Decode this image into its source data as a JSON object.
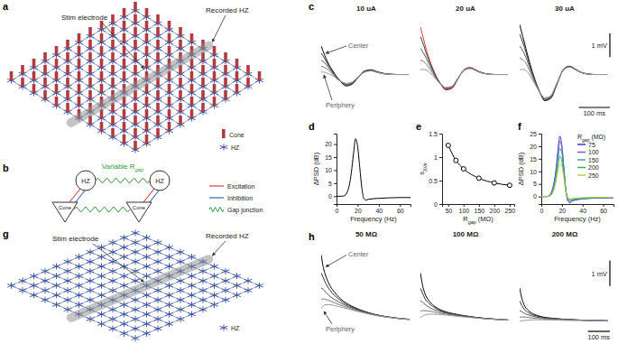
{
  "chart_data": [
    {
      "type": "line",
      "label": "c",
      "title": "10 uA",
      "tick_labels": false,
      "annotations": [
        "Center",
        "Periphery"
      ],
      "x": [
        0,
        10,
        20,
        30,
        40,
        50,
        60,
        70,
        80,
        100,
        120,
        140,
        160,
        180,
        200,
        240,
        280
      ],
      "xlim": [
        0,
        290
      ],
      "ylim": [
        -1.5,
        2.3
      ],
      "series": [
        {
          "color": "#000000",
          "values": [
            1.2,
            0.85,
            0.55,
            0.3,
            0.1,
            -0.1,
            -0.25,
            -0.4,
            -0.48,
            -0.4,
            -0.1,
            0.15,
            0.2,
            0.12,
            0.05,
            0,
            0
          ]
        },
        {
          "color": "#333333",
          "values": [
            0.9,
            0.7,
            0.45,
            0.25,
            0.05,
            -0.12,
            -0.27,
            -0.38,
            -0.45,
            -0.38,
            -0.1,
            0.13,
            0.18,
            0.1,
            0.04,
            0,
            0
          ]
        },
        {
          "color": "#555555",
          "values": [
            0.6,
            0.5,
            0.35,
            0.18,
            0.02,
            -0.14,
            -0.27,
            -0.36,
            -0.42,
            -0.35,
            -0.09,
            0.12,
            0.17,
            0.1,
            0.04,
            0,
            0
          ]
        },
        {
          "color": "#777777",
          "values": [
            0.35,
            0.3,
            0.22,
            0.1,
            -0.03,
            -0.16,
            -0.27,
            -0.34,
            -0.39,
            -0.33,
            -0.08,
            0.11,
            0.16,
            0.09,
            0.03,
            0,
            0
          ]
        },
        {
          "color": "#999999",
          "values": [
            0.1,
            0.1,
            0.05,
            0,
            -0.08,
            -0.18,
            -0.27,
            -0.33,
            -0.37,
            -0.31,
            -0.08,
            0.1,
            0.15,
            0.09,
            0.03,
            0,
            0
          ]
        }
      ]
    },
    {
      "type": "line",
      "title": "20 uA",
      "tick_labels": false,
      "x": [
        0,
        10,
        20,
        30,
        40,
        50,
        60,
        70,
        80,
        100,
        120,
        140,
        160,
        180,
        200,
        240,
        280
      ],
      "xlim": [
        0,
        290
      ],
      "ylim": [
        -1.5,
        2.3
      ],
      "series": [
        {
          "color": "#d9412f",
          "values": [
            2.0,
            1.5,
            1.0,
            0.6,
            0.25,
            -0.05,
            -0.3,
            -0.5,
            -0.65,
            -0.6,
            -0.2,
            0.2,
            0.3,
            0.18,
            0.07,
            0,
            0
          ]
        },
        {
          "color": "#333333",
          "values": [
            1.6,
            1.25,
            0.85,
            0.5,
            0.2,
            -0.08,
            -0.3,
            -0.48,
            -0.62,
            -0.57,
            -0.19,
            0.19,
            0.28,
            0.17,
            0.06,
            0,
            0
          ]
        },
        {
          "color": "#555555",
          "values": [
            1.1,
            0.9,
            0.65,
            0.38,
            0.12,
            -0.12,
            -0.32,
            -0.47,
            -0.6,
            -0.55,
            -0.18,
            0.18,
            0.27,
            0.16,
            0.06,
            0,
            0
          ]
        },
        {
          "color": "#777777",
          "values": [
            0.6,
            0.55,
            0.42,
            0.24,
            0.04,
            -0.15,
            -0.33,
            -0.46,
            -0.57,
            -0.52,
            -0.17,
            0.17,
            0.26,
            0.15,
            0.05,
            0,
            0
          ]
        },
        {
          "color": "#999999",
          "values": [
            0.2,
            0.22,
            0.18,
            0.08,
            -0.05,
            -0.2,
            -0.34,
            -0.45,
            -0.54,
            -0.5,
            -0.16,
            0.16,
            0.25,
            0.15,
            0.05,
            0,
            0
          ]
        }
      ]
    },
    {
      "type": "line",
      "title": "30 uA",
      "tick_labels": false,
      "scale_bar": {
        "x": 100,
        "x_label": "100 ms",
        "y": 1,
        "y_label": "1 mV"
      },
      "x": [
        0,
        10,
        20,
        30,
        40,
        50,
        60,
        70,
        80,
        100,
        120,
        140,
        160,
        180,
        200,
        240,
        280
      ],
      "xlim": [
        0,
        290
      ],
      "ylim": [
        -1.5,
        2.3
      ],
      "series": [
        {
          "color": "#000000",
          "values": [
            2.1,
            1.6,
            1.1,
            0.6,
            0.15,
            -0.25,
            -0.6,
            -0.9,
            -1.1,
            -1.0,
            -0.4,
            0.2,
            0.35,
            0.22,
            0.08,
            0,
            0
          ]
        },
        {
          "color": "#333333",
          "values": [
            1.7,
            1.35,
            0.95,
            0.5,
            0.1,
            -0.28,
            -0.6,
            -0.88,
            -1.07,
            -0.97,
            -0.39,
            0.19,
            0.34,
            0.21,
            0.08,
            0,
            0
          ]
        },
        {
          "color": "#555555",
          "values": [
            1.2,
            1.0,
            0.72,
            0.38,
            0.02,
            -0.32,
            -0.62,
            -0.87,
            -1.04,
            -0.94,
            -0.37,
            0.18,
            0.33,
            0.2,
            0.07,
            0,
            0
          ]
        },
        {
          "color": "#777777",
          "values": [
            0.7,
            0.62,
            0.48,
            0.22,
            -0.08,
            -0.37,
            -0.64,
            -0.86,
            -1.01,
            -0.91,
            -0.36,
            0.18,
            0.32,
            0.2,
            0.07,
            0,
            0
          ]
        },
        {
          "color": "#999999",
          "values": [
            0.2,
            0.22,
            0.18,
            0.02,
            -0.2,
            -0.43,
            -0.66,
            -0.85,
            -0.98,
            -0.88,
            -0.35,
            0.17,
            0.31,
            0.19,
            0.07,
            0,
            0
          ]
        }
      ]
    },
    {
      "type": "line",
      "label": "d",
      "x_label": "Frequency (Hz)",
      "y_label": "ΔPSD (dB)",
      "x": [
        0,
        5,
        8,
        10,
        12,
        14,
        16,
        18,
        20,
        22,
        24,
        26,
        28,
        30,
        40,
        50,
        60,
        70
      ],
      "xlim": [
        0,
        70
      ],
      "ylim": [
        -3,
        24
      ],
      "xticks": [
        0,
        20,
        40,
        60
      ],
      "yticks": [
        0,
        5,
        10,
        15,
        20
      ],
      "series": [
        {
          "color": "#000000",
          "values": [
            0,
            0,
            0.3,
            1.5,
            4,
            9,
            16,
            22,
            19,
            11,
            3,
            -1,
            -1.5,
            -1.2,
            -0.8,
            -0.6,
            -0.5,
            -0.5
          ]
        }
      ]
    },
    {
      "type": "line",
      "label": "e",
      "marker": "circle",
      "x_label": [
        {
          "text": "R"
        },
        {
          "text": "gap",
          "sub": true
        },
        {
          "text": " (MΩ)"
        }
      ],
      "y_label": [
        {
          "text": "s"
        },
        {
          "text": "ΔVe",
          "sub": true
        }
      ],
      "x": [
        50,
        75,
        100,
        150,
        200,
        250
      ],
      "xlim": [
        30,
        265
      ],
      "ylim": [
        0,
        1.5
      ],
      "xticks": [
        50,
        100,
        150,
        200,
        250
      ],
      "yticks": [
        0,
        0.5,
        1,
        1.5
      ],
      "series": [
        {
          "color": "#000000",
          "values": [
            1.25,
            0.93,
            0.75,
            0.55,
            0.45,
            0.4
          ]
        }
      ]
    },
    {
      "type": "line",
      "label": "f",
      "x_label": "Frequency (Hz)",
      "y_label": "ΔPSD (dB)",
      "legend": "upper right",
      "legend_title": [
        {
          "text": "R"
        },
        {
          "text": "gap",
          "sub": true
        },
        {
          "text": " (MΩ)"
        }
      ],
      "x": [
        0,
        5,
        8,
        10,
        12,
        14,
        16,
        18,
        20,
        22,
        24,
        26,
        28,
        30,
        40,
        50,
        60,
        70
      ],
      "xlim": [
        0,
        70
      ],
      "ylim": [
        -3,
        25
      ],
      "xticks": [
        0,
        20,
        40,
        60
      ],
      "yticks": [
        0,
        5,
        10,
        15,
        20,
        25
      ],
      "series": [
        {
          "name": "75",
          "color": "#3b3bd6",
          "values": [
            0,
            0,
            0.4,
            2,
            5,
            10,
            18,
            24,
            20,
            11,
            2,
            -2,
            -2.5,
            -1.8,
            -1,
            -0.7,
            -0.6,
            -0.5
          ]
        },
        {
          "name": "100",
          "color": "#7b5fc9",
          "values": [
            0,
            0,
            0.3,
            1.5,
            4,
            9,
            16,
            22,
            19,
            10,
            2,
            -1.5,
            -2,
            -1.5,
            -0.9,
            -0.6,
            -0.5,
            -0.5
          ]
        },
        {
          "name": "150",
          "color": "#2aa8a8",
          "values": [
            0,
            0,
            0.3,
            1.2,
            3.5,
            8,
            14,
            19,
            17,
            9,
            2,
            -1,
            -1.5,
            -1.2,
            -0.8,
            -0.5,
            -0.4,
            -0.4
          ]
        },
        {
          "name": "200",
          "color": "#2fb34a",
          "values": [
            0,
            0,
            0.2,
            1,
            3,
            6.5,
            12,
            16,
            14,
            8,
            1.5,
            -0.8,
            -1.2,
            -1,
            -0.6,
            -0.4,
            -0.3,
            -0.3
          ]
        },
        {
          "name": "250",
          "color": "#b5d334",
          "values": [
            0,
            0,
            0.2,
            0.8,
            2.5,
            5.5,
            10,
            13,
            12,
            7,
            1.2,
            -0.6,
            -1,
            -0.8,
            -0.5,
            -0.3,
            -0.3,
            -0.3
          ]
        }
      ]
    },
    {
      "type": "line",
      "label": "h",
      "title": "50 MΩ",
      "tick_labels": false,
      "annotations": [
        "Center",
        "Periphery"
      ],
      "x": [
        0,
        10,
        20,
        40,
        60,
        80,
        100,
        150,
        200,
        250,
        300,
        350,
        400
      ],
      "xlim": [
        0,
        410
      ],
      "ylim": [
        -0.5,
        2.9
      ],
      "series": [
        {
          "color": "#000000",
          "values": [
            2.6,
            2.1,
            1.8,
            1.4,
            1.15,
            0.95,
            0.8,
            0.55,
            0.38,
            0.26,
            0.18,
            0.12,
            0.08
          ]
        },
        {
          "color": "#333333",
          "values": [
            1.9,
            1.7,
            1.5,
            1.22,
            1.02,
            0.87,
            0.74,
            0.52,
            0.37,
            0.25,
            0.17,
            0.12,
            0.08
          ]
        },
        {
          "color": "#555555",
          "values": [
            1.3,
            1.25,
            1.15,
            0.98,
            0.86,
            0.76,
            0.67,
            0.49,
            0.35,
            0.24,
            0.17,
            0.11,
            0.07
          ]
        },
        {
          "color": "#777777",
          "values": [
            0.85,
            0.88,
            0.86,
            0.8,
            0.73,
            0.66,
            0.6,
            0.45,
            0.33,
            0.23,
            0.16,
            0.11,
            0.07
          ]
        },
        {
          "color": "#999999",
          "values": [
            0.5,
            0.6,
            0.65,
            0.65,
            0.62,
            0.58,
            0.54,
            0.42,
            0.32,
            0.23,
            0.16,
            0.11,
            0.07
          ]
        }
      ]
    },
    {
      "type": "line",
      "title": "100 MΩ",
      "tick_labels": false,
      "x": [
        0,
        10,
        20,
        40,
        60,
        80,
        100,
        150,
        200,
        250,
        300,
        350,
        400
      ],
      "xlim": [
        0,
        410
      ],
      "ylim": [
        -0.5,
        2.9
      ],
      "series": [
        {
          "color": "#000000",
          "values": [
            1.9,
            1.4,
            1.1,
            0.8,
            0.62,
            0.5,
            0.42,
            0.3,
            0.22,
            0.16,
            0.11,
            0.08,
            0.05
          ]
        },
        {
          "color": "#333333",
          "values": [
            1.3,
            1.1,
            0.9,
            0.7,
            0.56,
            0.46,
            0.39,
            0.28,
            0.21,
            0.15,
            0.11,
            0.08,
            0.05
          ]
        },
        {
          "color": "#555555",
          "values": [
            0.8,
            0.75,
            0.67,
            0.55,
            0.46,
            0.4,
            0.35,
            0.26,
            0.2,
            0.15,
            0.1,
            0.07,
            0.05
          ]
        },
        {
          "color": "#777777",
          "values": [
            0.4,
            0.42,
            0.42,
            0.4,
            0.37,
            0.33,
            0.3,
            0.24,
            0.18,
            0.14,
            0.1,
            0.07,
            0.05
          ]
        },
        {
          "color": "#999999",
          "values": [
            0.15,
            0.2,
            0.25,
            0.28,
            0.28,
            0.27,
            0.26,
            0.21,
            0.17,
            0.13,
            0.09,
            0.07,
            0.05
          ]
        }
      ]
    },
    {
      "type": "line",
      "title": "200 MΩ",
      "tick_labels": false,
      "scale_bar": {
        "x": 100,
        "x_label": "100 ms",
        "y": 1,
        "y_label": "1 mV"
      },
      "x": [
        0,
        10,
        20,
        40,
        60,
        80,
        100,
        150,
        200,
        250,
        300,
        350,
        400
      ],
      "xlim": [
        0,
        410
      ],
      "ylim": [
        -0.5,
        2.9
      ],
      "series": [
        {
          "color": "#000000",
          "values": [
            1.3,
            0.9,
            0.65,
            0.42,
            0.3,
            0.23,
            0.18,
            0.12,
            0.08,
            0.06,
            0.04,
            0.03,
            0.02
          ]
        },
        {
          "color": "#333333",
          "values": [
            0.8,
            0.62,
            0.48,
            0.34,
            0.25,
            0.2,
            0.16,
            0.11,
            0.08,
            0.06,
            0.04,
            0.03,
            0.02
          ]
        },
        {
          "color": "#555555",
          "values": [
            0.42,
            0.38,
            0.32,
            0.25,
            0.2,
            0.16,
            0.13,
            0.1,
            0.07,
            0.05,
            0.04,
            0.03,
            0.02
          ]
        },
        {
          "color": "#777777",
          "values": [
            0.15,
            0.17,
            0.17,
            0.15,
            0.13,
            0.11,
            0.1,
            0.08,
            0.06,
            0.05,
            0.04,
            0.03,
            0.02
          ]
        },
        {
          "color": "#999999",
          "values": [
            0,
            0.02,
            0.03,
            0.05,
            0.06,
            0.06,
            0.06,
            0.05,
            0.04,
            0.03,
            0.03,
            0.02,
            0.02
          ]
        }
      ]
    }
  ],
  "diagrams": {
    "a": {
      "label": "a",
      "stim_electrode": "Stim electrode",
      "recorded": "Recorded HZ",
      "legend": {
        "cone": "Cone",
        "hz": "HZ"
      }
    },
    "b": {
      "label": "b",
      "hz": "HZ",
      "cone": "Cone",
      "gap": [
        {
          "text": "Variable R"
        },
        {
          "text": "gap",
          "sub": true
        }
      ],
      "legend": {
        "excitation": "Excitation",
        "inhibition": "Inhibition",
        "gap_junction": "Gap junction"
      }
    },
    "g": {
      "label": "g",
      "stim_electrode": "Stim electrode",
      "recorded": "Recorded HZ",
      "legend": {
        "hz": "HZ"
      }
    }
  }
}
